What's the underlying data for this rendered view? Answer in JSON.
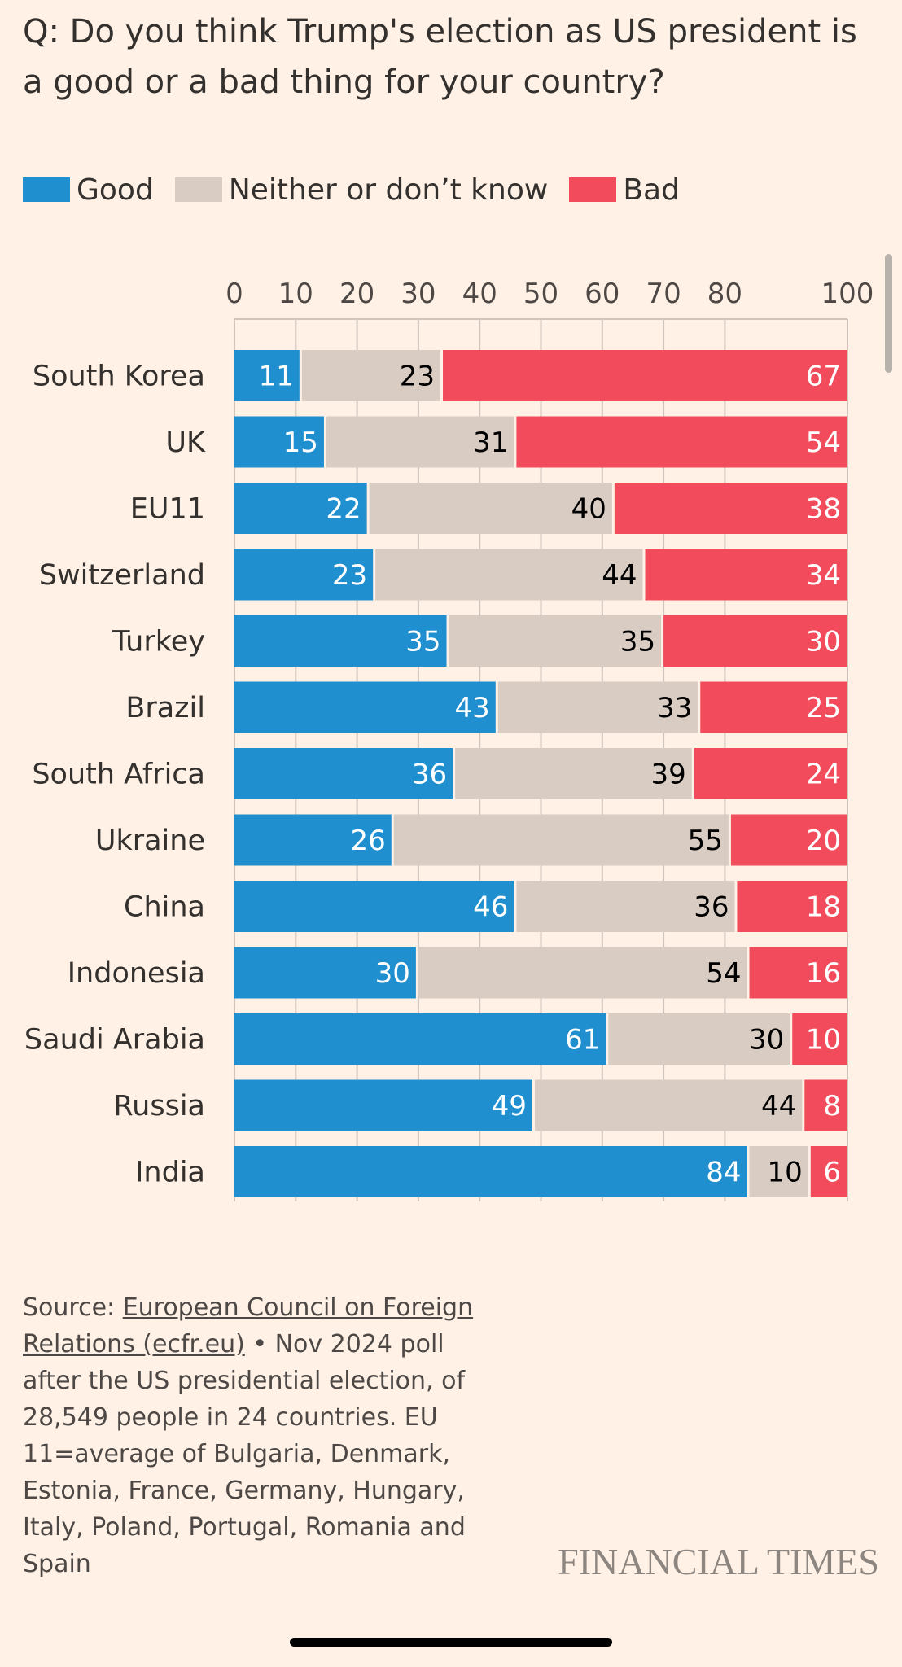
{
  "header": {
    "title": "Q: Do you think Trump's election as US president is a good or a bad thing for your country?"
  },
  "legend": [
    {
      "label": "Good",
      "color": "#1F8FD0"
    },
    {
      "label": "Neither or don’t know",
      "color": "#D9CCC3"
    },
    {
      "label": "Bad",
      "color": "#F24B5B"
    }
  ],
  "chart_data": {
    "type": "bar",
    "orientation": "horizontal",
    "stacked": true,
    "title": "Q: Do you think Trump's election as US president is a good or a bad thing for your country?",
    "xlabel": "",
    "ylabel": "",
    "xlim": [
      0,
      100
    ],
    "x_ticks": [
      "0",
      "10",
      "20",
      "30",
      "40",
      "50",
      "60",
      "70",
      "80",
      "100"
    ],
    "x_tick_values": [
      0,
      10,
      20,
      30,
      40,
      50,
      60,
      70,
      80,
      100
    ],
    "x_axis_position": "top",
    "grid": true,
    "legend_position": "top-left",
    "categories": [
      "South Korea",
      "UK",
      "EU11",
      "Switzerland",
      "Turkey",
      "Brazil",
      "South Africa",
      "Ukraine",
      "China",
      "Indonesia",
      "Saudi Arabia",
      "Russia",
      "India"
    ],
    "series": [
      {
        "name": "Good",
        "color": "#1F8FD0",
        "label_color": "#FFFFFF",
        "values": [
          11,
          15,
          22,
          23,
          35,
          43,
          36,
          26,
          46,
          30,
          61,
          49,
          84
        ]
      },
      {
        "name": "Neither or don’t know",
        "color": "#D9CCC3",
        "label_color": "#000000",
        "values": [
          23,
          31,
          40,
          44,
          35,
          33,
          39,
          55,
          36,
          54,
          30,
          44,
          10
        ]
      },
      {
        "name": "Bad",
        "color": "#F24B5B",
        "label_color": "#FFFFFF",
        "values": [
          67,
          54,
          38,
          34,
          30,
          25,
          24,
          20,
          18,
          16,
          10,
          8,
          6
        ]
      }
    ]
  },
  "source": {
    "prefix": "Source: ",
    "link_text": "European Council on Foreign Relations (ecfr.eu)",
    "rest": " • Nov 2024 poll after the US presidential election, of 28,549 people in 24 countries. EU 11=average of Bulgaria, Denmark, Estonia, France, Germany, Hungary, Italy, Poland, Portugal, Romania and Spain"
  },
  "brand": "FINANCIAL TIMES"
}
